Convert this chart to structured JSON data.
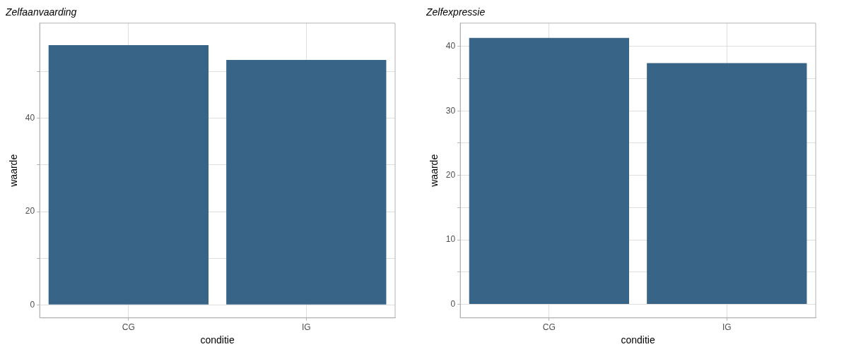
{
  "chart_data": [
    {
      "type": "bar",
      "title": "Zelfaanvaarding",
      "categories": [
        "CG",
        "IG"
      ],
      "values": [
        55.7,
        52.5
      ],
      "color": "#386488",
      "xlabel": "conditie",
      "ylabel": "waarde",
      "ylim": [
        -2.8,
        60.4
      ],
      "yticks": [
        0,
        {
          "value": 10,
          "label": null
        },
        20,
        {
          "value": 30,
          "label": null
        },
        40,
        {
          "value": 50,
          "label": null
        }
      ],
      "grid": true
    },
    {
      "type": "bar",
      "title": "Zelfexpressie",
      "categories": [
        "CG",
        "IG"
      ],
      "values": [
        41.3,
        37.4
      ],
      "color": "#386488",
      "xlabel": "conditie",
      "ylabel": "waarde",
      "ylim": [
        -2.1,
        43.6
      ],
      "yticks": [
        0,
        {
          "value": 5,
          "label": null
        },
        10,
        {
          "value": 15,
          "label": null
        },
        20,
        {
          "value": 25,
          "label": null
        },
        30,
        {
          "value": 35,
          "label": null
        },
        40
      ],
      "grid": true
    }
  ]
}
